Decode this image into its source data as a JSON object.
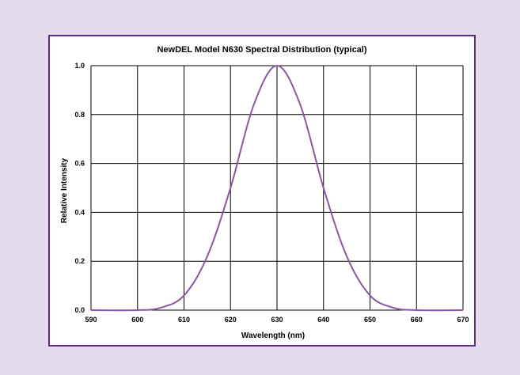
{
  "colors": {
    "background": "#e4dcec",
    "frame_border": "#5e2a82",
    "curve": "#8c55a8"
  },
  "chart_data": {
    "type": "line",
    "title": "NewDEL Model N630 Spectral Distribution (typical)",
    "xlabel": "Wavelength (nm)",
    "ylabel": "Relative Intensity",
    "xlim": [
      590,
      670
    ],
    "ylim": [
      0,
      1.0
    ],
    "grid": true,
    "x_ticks": [
      590,
      600,
      610,
      620,
      630,
      640,
      650,
      660,
      670
    ],
    "x_tick_labels": [
      "590",
      "600",
      "610",
      "620",
      "630",
      "640",
      "650",
      "660",
      "670"
    ],
    "y_ticks": [
      0,
      0.2,
      0.4,
      0.6,
      0.8,
      1.0
    ],
    "y_tick_labels": [
      "0.0",
      "0.2",
      "0.4",
      "0.6",
      "0.8",
      "1.0"
    ],
    "series": [
      {
        "x": [
          590,
          600,
          605,
          610,
          615,
          620,
          625,
          630,
          635,
          640,
          645,
          650,
          655,
          660,
          670
        ],
        "y": [
          0.0,
          0.0,
          0.01,
          0.06,
          0.22,
          0.5,
          0.84,
          1.0,
          0.84,
          0.5,
          0.22,
          0.06,
          0.01,
          0.0,
          0.0
        ]
      }
    ]
  }
}
